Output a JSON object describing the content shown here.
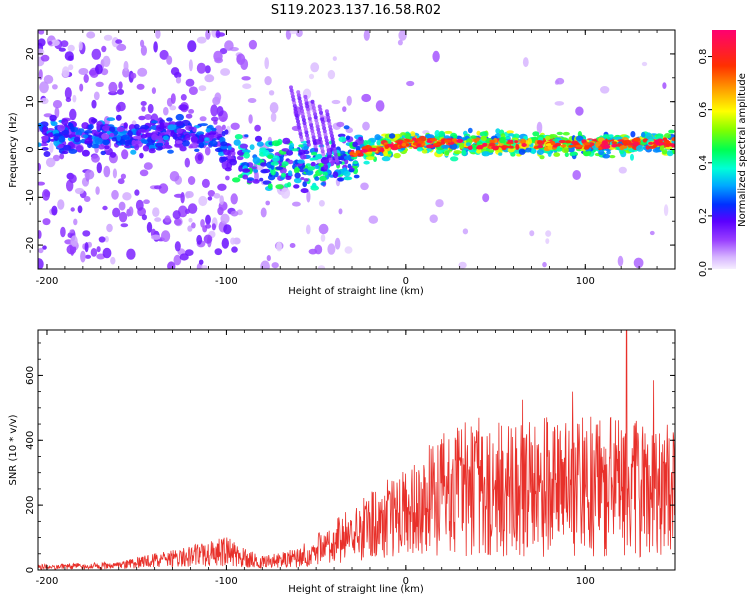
{
  "title": "S119.2023.137.16.58.R02",
  "chart_data": [
    {
      "type": "heatmap",
      "xlabel": "Height of straight line (km)",
      "ylabel": "Frequency (Hz)",
      "xlim": [
        -205,
        150
      ],
      "ylim": [
        -25,
        25
      ],
      "xticks": [
        -200,
        -100,
        0,
        100
      ],
      "yticks": [
        -20,
        -10,
        0,
        10,
        20
      ],
      "colorbar": {
        "label": "Normalized spectral amplitude",
        "range": [
          0,
          0.9
        ],
        "ticks": [
          0.0,
          0.2,
          0.4,
          0.6,
          0.8
        ],
        "colors": [
          "#f0e4ff",
          "#d6b4ff",
          "#9a40ff",
          "#5a00ff",
          "#0040ff",
          "#00b8ff",
          "#00ffd0",
          "#00ff40",
          "#b0ff00",
          "#ffff00",
          "#ffa000",
          "#ff3000",
          "#ff0060"
        ]
      },
      "ridge": [
        {
          "x": -200,
          "y": 3
        },
        {
          "x": -150,
          "y": 3
        },
        {
          "x": -110,
          "y": 3
        },
        {
          "x": -95,
          "y": -2
        },
        {
          "x": -70,
          "y": -3
        },
        {
          "x": -45,
          "y": -3
        },
        {
          "x": -30,
          "y": -1
        },
        {
          "x": 0,
          "y": 1.5
        },
        {
          "x": 50,
          "y": 1
        },
        {
          "x": 100,
          "y": 1
        },
        {
          "x": 150,
          "y": 1.5
        }
      ]
    },
    {
      "type": "line",
      "xlabel": "Height of straight line (km)",
      "ylabel": "SNR (10 * v/v)",
      "xlim": [
        -205,
        150
      ],
      "ylim": [
        0,
        740
      ],
      "xticks": [
        -200,
        -100,
        0,
        100
      ],
      "yticks": [
        0,
        200,
        400,
        600
      ],
      "color": "#e8302a",
      "envelope": [
        {
          "x": -205,
          "y": 10
        },
        {
          "x": -160,
          "y": 15
        },
        {
          "x": -140,
          "y": 30
        },
        {
          "x": -120,
          "y": 45
        },
        {
          "x": -100,
          "y": 60
        },
        {
          "x": -80,
          "y": 25
        },
        {
          "x": -60,
          "y": 40
        },
        {
          "x": -40,
          "y": 90
        },
        {
          "x": -20,
          "y": 140
        },
        {
          "x": 0,
          "y": 190
        },
        {
          "x": 20,
          "y": 240
        },
        {
          "x": 40,
          "y": 270
        },
        {
          "x": 60,
          "y": 270
        },
        {
          "x": 80,
          "y": 270
        },
        {
          "x": 100,
          "y": 270
        },
        {
          "x": 120,
          "y": 270
        },
        {
          "x": 150,
          "y": 260
        }
      ],
      "peaks": [
        {
          "x": 123,
          "y": 740
        },
        {
          "x": 138,
          "y": 585
        },
        {
          "x": 93,
          "y": 550
        },
        {
          "x": 65,
          "y": 525
        },
        {
          "x": 33,
          "y": 455
        }
      ]
    }
  ]
}
